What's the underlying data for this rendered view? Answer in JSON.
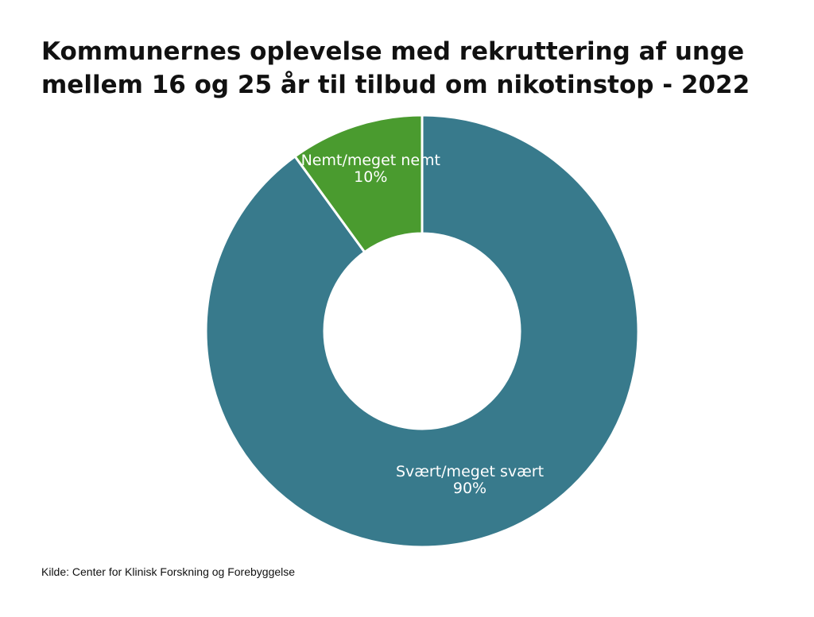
{
  "chart_data": {
    "type": "pie",
    "variant": "donut",
    "title_lines": [
      "Kommunernes oplevelse med rekruttering af unge",
      "mellem 16 og 25 år til tilbud om nikotinstop - 2022"
    ],
    "slices": [
      {
        "label": "Svært/meget svært",
        "value": 90,
        "value_label": "90%",
        "color": "#387a8c"
      },
      {
        "label": "Nemt/meget nemt",
        "value": 10,
        "value_label": "10%",
        "color": "#4a9b2f"
      }
    ],
    "legend": "none"
  },
  "source": "Kilde: Center for Klinisk Forskning og Forebyggelse"
}
